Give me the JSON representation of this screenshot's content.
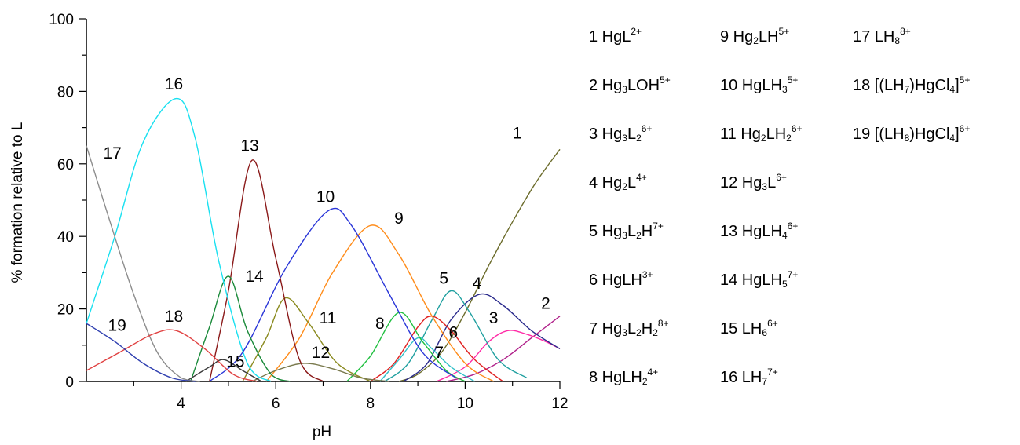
{
  "chart_data": {
    "type": "line",
    "xlabel": "pH",
    "ylabel": "% formation relative to L",
    "xlim": [
      2,
      12
    ],
    "ylim": [
      0,
      100
    ],
    "xticks": [
      "4",
      "6",
      "8",
      "10",
      "12"
    ],
    "yticks": [
      "0",
      "20",
      "40",
      "60",
      "80",
      "100"
    ],
    "series": [
      {
        "name": "1",
        "color": "#6b6b2a",
        "points": [
          [
            8.6,
            0
          ],
          [
            9.0,
            2
          ],
          [
            9.5,
            8
          ],
          [
            10.0,
            19
          ],
          [
            10.5,
            32
          ],
          [
            11.0,
            44
          ],
          [
            11.5,
            55
          ],
          [
            12.0,
            64
          ]
        ]
      },
      {
        "name": "2",
        "color": "#b0208a",
        "points": [
          [
            9.6,
            0
          ],
          [
            10.2,
            2
          ],
          [
            10.8,
            6
          ],
          [
            11.4,
            12
          ],
          [
            12.0,
            18
          ]
        ]
      },
      {
        "name": "3",
        "color": "#ff2aa6",
        "points": [
          [
            9.4,
            0
          ],
          [
            10.0,
            4
          ],
          [
            10.5,
            11
          ],
          [
            10.9,
            14
          ],
          [
            11.3,
            13
          ],
          [
            11.7,
            11
          ],
          [
            12.0,
            9
          ]
        ]
      },
      {
        "name": "4",
        "color": "#2a2a8c",
        "points": [
          [
            8.7,
            0
          ],
          [
            9.2,
            5
          ],
          [
            9.7,
            17
          ],
          [
            10.3,
            24
          ],
          [
            10.8,
            21
          ],
          [
            11.4,
            14
          ],
          [
            12.0,
            9
          ]
        ]
      },
      {
        "name": "5",
        "color": "#20a0a0",
        "points": [
          [
            8.3,
            0
          ],
          [
            8.8,
            5
          ],
          [
            9.3,
            17
          ],
          [
            9.7,
            25
          ],
          [
            10.1,
            19
          ],
          [
            10.7,
            6
          ],
          [
            11.3,
            1
          ]
        ]
      },
      {
        "name": "6",
        "color": "#e02020",
        "points": [
          [
            8.0,
            0
          ],
          [
            8.5,
            5
          ],
          [
            9.0,
            15
          ],
          [
            9.3,
            18
          ],
          [
            9.7,
            14
          ],
          [
            10.2,
            6
          ],
          [
            10.8,
            0
          ]
        ]
      },
      {
        "name": "7",
        "color": "#30c0c8",
        "points": [
          [
            8.2,
            0
          ],
          [
            8.6,
            6
          ],
          [
            9.0,
            12
          ],
          [
            9.3,
            9
          ],
          [
            9.7,
            4
          ],
          [
            10.2,
            0
          ]
        ]
      },
      {
        "name": "8",
        "color": "#20c040",
        "points": [
          [
            7.5,
            0
          ],
          [
            8.0,
            7
          ],
          [
            8.6,
            19
          ],
          [
            9.1,
            11
          ],
          [
            9.6,
            3
          ],
          [
            10.0,
            0
          ]
        ]
      },
      {
        "name": "9",
        "color": "#ff8c1a",
        "points": [
          [
            5.8,
            0
          ],
          [
            6.5,
            12
          ],
          [
            7.2,
            30
          ],
          [
            8.0,
            43
          ],
          [
            8.6,
            35
          ],
          [
            9.3,
            18
          ],
          [
            10.0,
            5
          ],
          [
            10.6,
            0
          ]
        ]
      },
      {
        "name": "10",
        "color": "#2a36d8",
        "points": [
          [
            4.6,
            0
          ],
          [
            5.3,
            8
          ],
          [
            6.2,
            31
          ],
          [
            7.1,
            47
          ],
          [
            7.6,
            43
          ],
          [
            8.4,
            24
          ],
          [
            9.1,
            8
          ],
          [
            9.8,
            1
          ]
        ]
      },
      {
        "name": "11",
        "color": "#8a8a1e",
        "points": [
          [
            5.3,
            0
          ],
          [
            5.8,
            12
          ],
          [
            6.2,
            23
          ],
          [
            6.7,
            16
          ],
          [
            7.3,
            5
          ],
          [
            8.0,
            0
          ]
        ]
      },
      {
        "name": "12",
        "color": "#7a7a4e",
        "points": [
          [
            5.5,
            0
          ],
          [
            6.0,
            3
          ],
          [
            6.6,
            5
          ],
          [
            7.2,
            3.5
          ],
          [
            7.8,
            1
          ],
          [
            8.4,
            0
          ]
        ]
      },
      {
        "name": "13",
        "color": "#8b1a1a",
        "points": [
          [
            4.6,
            0
          ],
          [
            5.0,
            25
          ],
          [
            5.5,
            61
          ],
          [
            6.0,
            34
          ],
          [
            6.5,
            6
          ],
          [
            7.0,
            0
          ]
        ]
      },
      {
        "name": "14",
        "color": "#1a8a3a",
        "points": [
          [
            4.2,
            0
          ],
          [
            4.6,
            15
          ],
          [
            5.0,
            29
          ],
          [
            5.4,
            14
          ],
          [
            5.9,
            2
          ],
          [
            6.3,
            0
          ]
        ]
      },
      {
        "name": "15",
        "color": "#3a3a3a",
        "points": [
          [
            4.1,
            0
          ],
          [
            4.6,
            4
          ],
          [
            4.9,
            6
          ],
          [
            5.3,
            3
          ],
          [
            5.7,
            0
          ]
        ]
      },
      {
        "name": "16",
        "color": "#18e0f0",
        "points": [
          [
            2.0,
            16
          ],
          [
            2.6,
            40
          ],
          [
            3.2,
            66
          ],
          [
            3.9,
            78
          ],
          [
            4.3,
            67
          ],
          [
            4.8,
            33
          ],
          [
            5.4,
            5
          ],
          [
            5.9,
            0
          ]
        ]
      },
      {
        "name": "17",
        "color": "#8c8c8c",
        "points": [
          [
            2.0,
            65
          ],
          [
            2.5,
            44
          ],
          [
            3.0,
            24
          ],
          [
            3.5,
            8
          ],
          [
            4.0,
            1
          ],
          [
            4.4,
            0
          ]
        ]
      },
      {
        "name": "18",
        "color": "#e04040",
        "points": [
          [
            2.0,
            3
          ],
          [
            2.7,
            8
          ],
          [
            3.4,
            13
          ],
          [
            3.9,
            14
          ],
          [
            4.5,
            9
          ],
          [
            5.1,
            2
          ],
          [
            5.6,
            0
          ]
        ]
      },
      {
        "name": "19",
        "color": "#3040b0",
        "points": [
          [
            2.0,
            16
          ],
          [
            2.6,
            11
          ],
          [
            3.2,
            5
          ],
          [
            3.8,
            1
          ],
          [
            4.3,
            0
          ]
        ]
      }
    ],
    "curve_labels": [
      {
        "text": "1",
        "x": 11.1,
        "y": 67
      },
      {
        "text": "2",
        "x": 11.7,
        "y": 20
      },
      {
        "text": "3",
        "x": 10.6,
        "y": 16
      },
      {
        "text": "4",
        "x": 10.25,
        "y": 25.5
      },
      {
        "text": "5",
        "x": 9.55,
        "y": 27
      },
      {
        "text": "6",
        "x": 9.75,
        "y": 12
      },
      {
        "text": "7",
        "x": 9.45,
        "y": 6.5
      },
      {
        "text": "8",
        "x": 8.2,
        "y": 14.5
      },
      {
        "text": "9",
        "x": 8.6,
        "y": 43.5
      },
      {
        "text": "10",
        "x": 7.05,
        "y": 49.5
      },
      {
        "text": "11",
        "x": 7.1,
        "y": 16
      },
      {
        "text": "12",
        "x": 6.95,
        "y": 6.5
      },
      {
        "text": "13",
        "x": 5.45,
        "y": 63.5
      },
      {
        "text": "14",
        "x": 5.55,
        "y": 27.5
      },
      {
        "text": "15",
        "x": 5.15,
        "y": 4
      },
      {
        "text": "16",
        "x": 3.85,
        "y": 80.5
      },
      {
        "text": "17",
        "x": 2.55,
        "y": 61.5
      },
      {
        "text": "18",
        "x": 3.85,
        "y": 16.5
      },
      {
        "text": "19",
        "x": 2.65,
        "y": 14
      }
    ]
  },
  "legend": {
    "columns": [
      [
        {
          "parts": [
            [
              "t",
              "1 HgL"
            ],
            [
              "sup",
              "2+"
            ]
          ]
        },
        {
          "parts": [
            [
              "t",
              "2 Hg"
            ],
            [
              "sub",
              "3"
            ],
            [
              "t",
              "LOH"
            ],
            [
              "sup",
              "5+"
            ]
          ]
        },
        {
          "parts": [
            [
              "t",
              "3 Hg"
            ],
            [
              "sub",
              "3"
            ],
            [
              "t",
              "L"
            ],
            [
              "sub",
              "2"
            ],
            [
              "sup",
              "6+"
            ]
          ]
        },
        {
          "parts": [
            [
              "t",
              "4 Hg"
            ],
            [
              "sub",
              "2"
            ],
            [
              "t",
              "L"
            ],
            [
              "sup",
              "4+"
            ]
          ]
        },
        {
          "parts": [
            [
              "t",
              "5 Hg"
            ],
            [
              "sub",
              "3"
            ],
            [
              "t",
              "L"
            ],
            [
              "sub",
              "2"
            ],
            [
              "t",
              "H"
            ],
            [
              "sup",
              "7+"
            ]
          ]
        },
        {
          "parts": [
            [
              "t",
              "6 HgLH"
            ],
            [
              "sup",
              "3+"
            ]
          ]
        },
        {
          "parts": [
            [
              "t",
              "7 Hg"
            ],
            [
              "sub",
              "3"
            ],
            [
              "t",
              "L"
            ],
            [
              "sub",
              "2"
            ],
            [
              "t",
              "H"
            ],
            [
              "sub",
              "2"
            ],
            [
              "sup",
              "8+"
            ]
          ]
        },
        {
          "parts": [
            [
              "t",
              "8 HgLH"
            ],
            [
              "sub",
              "2"
            ],
            [
              "sup",
              "4+"
            ]
          ]
        }
      ],
      [
        {
          "parts": [
            [
              "t",
              "9  Hg"
            ],
            [
              "sub",
              "2"
            ],
            [
              "t",
              "LH"
            ],
            [
              "sup",
              "5+"
            ]
          ]
        },
        {
          "parts": [
            [
              "t",
              "10 HgLH"
            ],
            [
              "sub",
              "3"
            ],
            [
              "sup",
              "5+"
            ]
          ]
        },
        {
          "parts": [
            [
              "t",
              "11 Hg"
            ],
            [
              "sub",
              "2"
            ],
            [
              "t",
              "LH"
            ],
            [
              "sub",
              "2"
            ],
            [
              "sup",
              "6+"
            ]
          ]
        },
        {
          "parts": [
            [
              "t",
              "12 Hg"
            ],
            [
              "sub",
              "3"
            ],
            [
              "t",
              "L"
            ],
            [
              "sup",
              "6+"
            ]
          ]
        },
        {
          "parts": [
            [
              "t",
              "13 HgLH"
            ],
            [
              "sub",
              "4"
            ],
            [
              "sup",
              "6+"
            ]
          ]
        },
        {
          "parts": [
            [
              "t",
              "14 HgLH"
            ],
            [
              "sub",
              "5"
            ],
            [
              "sup",
              "7+"
            ]
          ]
        },
        {
          "parts": [
            [
              "t",
              "15 LH"
            ],
            [
              "sub",
              "6"
            ],
            [
              "sup",
              "6+"
            ]
          ]
        },
        {
          "parts": [
            [
              "t",
              "16 LH"
            ],
            [
              "sub",
              "7"
            ],
            [
              "sup",
              "7+"
            ]
          ]
        }
      ],
      [
        {
          "parts": [
            [
              "t",
              "17 LH"
            ],
            [
              "sub",
              "8"
            ],
            [
              "sup",
              "8+"
            ]
          ]
        },
        {
          "parts": [
            [
              "t",
              "18 [(LH"
            ],
            [
              "sub",
              "7"
            ],
            [
              "t",
              ")HgCl"
            ],
            [
              "sub",
              "4"
            ],
            [
              "t",
              "]"
            ],
            [
              "sup",
              "5+"
            ]
          ]
        },
        {
          "parts": [
            [
              "t",
              "19 [(LH"
            ],
            [
              "sub",
              "8"
            ],
            [
              "t",
              ")HgCl"
            ],
            [
              "sub",
              "4"
            ],
            [
              "t",
              "]"
            ],
            [
              "sup",
              "6+"
            ]
          ]
        }
      ]
    ]
  }
}
